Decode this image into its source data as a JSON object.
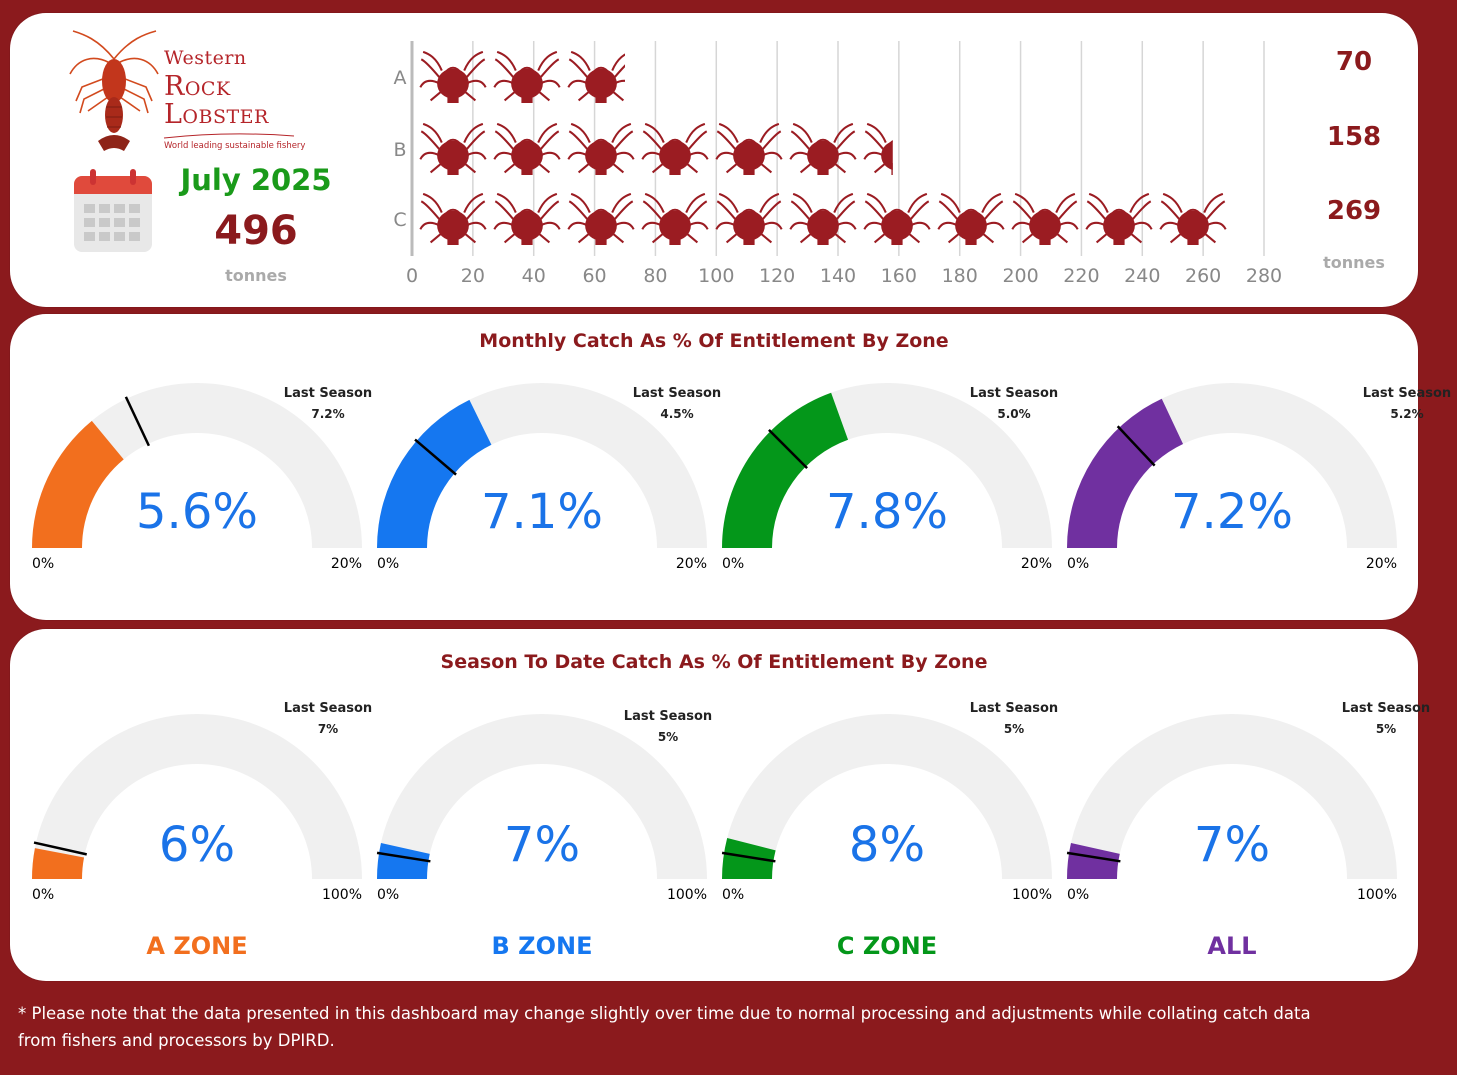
{
  "brand": {
    "line1": "Western",
    "line2": "Rock",
    "line3": "Lobster",
    "tagline": "World leading sustainable fishery"
  },
  "summary": {
    "month": "July 2025",
    "total": "496",
    "unit": "tonnes"
  },
  "chart_data": [
    {
      "type": "bar",
      "orientation": "horizontal",
      "title": "",
      "categories": [
        "A",
        "B",
        "C"
      ],
      "values": [
        70,
        158,
        269
      ],
      "xlim": [
        0,
        280
      ],
      "xticks": [
        "0",
        "20",
        "40",
        "60",
        "80",
        "100",
        "120",
        "140",
        "160",
        "180",
        "200",
        "220",
        "240",
        "260",
        "280"
      ],
      "unit": "tonnes",
      "grid": true
    },
    {
      "type": "gauge",
      "title": "Monthly Catch As % Of Entitlement By Zone",
      "gauges": [
        {
          "zone": "A",
          "value": 5.6,
          "label": "5.6%",
          "max": 20,
          "min_label": "0%",
          "max_label": "20%",
          "last_label": "Last Season",
          "last_value": 7.2,
          "last_text": "7.2%",
          "color": "#f26f1e"
        },
        {
          "zone": "B",
          "value": 7.1,
          "label": "7.1%",
          "max": 20,
          "min_label": "0%",
          "max_label": "20%",
          "last_label": "Last Season",
          "last_value": 4.5,
          "last_text": "4.5%",
          "color": "#1577f0"
        },
        {
          "zone": "C",
          "value": 7.8,
          "label": "7.8%",
          "max": 20,
          "min_label": "0%",
          "max_label": "20%",
          "last_label": "Last Season",
          "last_value": 5.0,
          "last_text": "5.0%",
          "color": "#04971a"
        },
        {
          "zone": "All",
          "value": 7.2,
          "label": "7.2%",
          "max": 20,
          "min_label": "0%",
          "max_label": "20%",
          "last_label": "Last Season",
          "last_value": 5.2,
          "last_text": "5.2%",
          "color": "#7030a0"
        }
      ]
    },
    {
      "type": "gauge",
      "title": "Season To Date Catch As % Of Entitlement By Zone",
      "gauges": [
        {
          "zone": "A",
          "value": 6,
          "label": "6%",
          "max": 100,
          "min_label": "0%",
          "max_label": "100%",
          "last_label": "Last Season",
          "last_value": 7,
          "last_text": "7%",
          "color": "#f26f1e"
        },
        {
          "zone": "B",
          "value": 7,
          "label": "7%",
          "max": 100,
          "min_label": "0%",
          "max_label": "100%",
          "last_label": "Last Season",
          "last_value": 5,
          "last_text": "5%",
          "color": "#1577f0"
        },
        {
          "zone": "C",
          "value": 8,
          "label": "8%",
          "max": 100,
          "min_label": "0%",
          "max_label": "100%",
          "last_label": "Last Season",
          "last_value": 5,
          "last_text": "5%",
          "color": "#04971a"
        },
        {
          "zone": "All",
          "value": 7,
          "label": "7%",
          "max": 100,
          "min_label": "0%",
          "max_label": "100%",
          "last_label": "Last Season",
          "last_value": 5,
          "last_text": "5%",
          "color": "#7030a0"
        }
      ]
    }
  ],
  "zone_labels": [
    {
      "text": "A ZONE",
      "color": "#f26f1e"
    },
    {
      "text": "B ZONE",
      "color": "#1577f0"
    },
    {
      "text": "C ZONE",
      "color": "#04971a"
    },
    {
      "text": "ALL",
      "color": "#7030a0"
    }
  ],
  "footnote": "* Please note that the data presented in this dashboard may change slightly over time due to normal processing and adjustments while collating catch data from fishers and processors by DPIRD.",
  "colors": {
    "brand": "#8b1a1d",
    "track": "#f0f0f0",
    "value_text": "#1a73e8",
    "bar_icon": "#9b1c22"
  }
}
